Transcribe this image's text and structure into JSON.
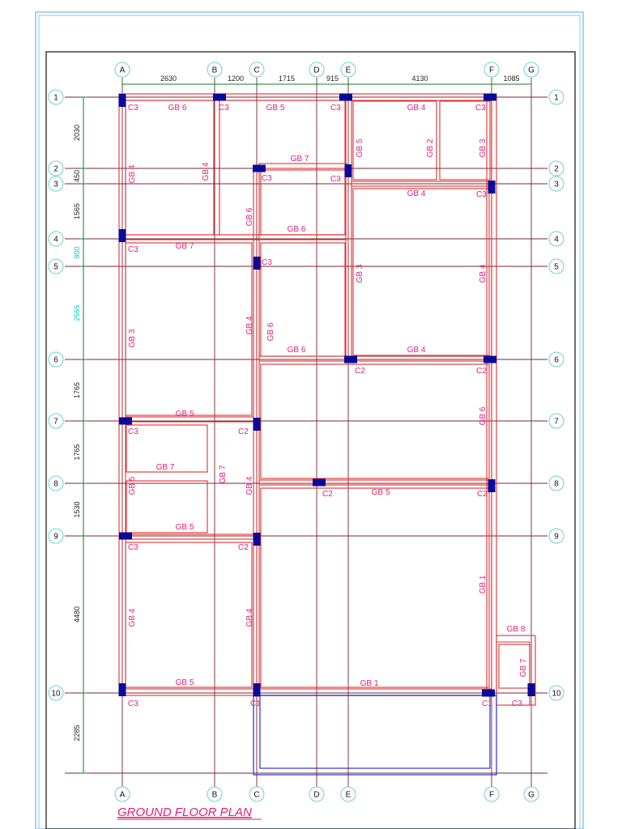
{
  "drawing": {
    "title": "GROUND FLOOR PLAN",
    "colors": {
      "frame": "#8fc3ee",
      "border": "#111111",
      "grid_line": "#7a2535",
      "beam": "#e03030",
      "column": "#0a0a9a",
      "label": "#e0207a",
      "bubble": "#6fcfcf",
      "dim": "#1a7a2a",
      "cyan_dim": "#00cccc",
      "balcony": "#3030c0"
    }
  },
  "grid_x": [
    {
      "label": "A"
    },
    {
      "label": "B"
    },
    {
      "label": "C"
    },
    {
      "label": "D"
    },
    {
      "label": "E"
    },
    {
      "label": "F"
    },
    {
      "label": "G"
    }
  ],
  "grid_y": [
    {
      "label": "1"
    },
    {
      "label": "2"
    },
    {
      "label": "3"
    },
    {
      "label": "4"
    },
    {
      "label": "5"
    },
    {
      "label": "6"
    },
    {
      "label": "7"
    },
    {
      "label": "8"
    },
    {
      "label": "9"
    },
    {
      "label": "10"
    }
  ],
  "dims_top": [
    "2630",
    "1200",
    "1715",
    "915",
    "4130",
    "1085"
  ],
  "dims_left": [
    "2030",
    "450",
    "1565",
    "800",
    "2565",
    "1765",
    "1765",
    "1530",
    "4480",
    "2285"
  ],
  "beam_labels": [
    "GB 6",
    "GB 5",
    "GB 4",
    "GB 7",
    "GB 4",
    "GB 6",
    "GB 6",
    "GB 7",
    "GB 4",
    "GB 4",
    "GB 6",
    "GB 5",
    "GB 2",
    "GB 3",
    "GB 3",
    "GB 4",
    "GB 4",
    "GB 6",
    "GB 4",
    "GB 5",
    "GB 7",
    "GB 7",
    "GB 5",
    "GB 5",
    "GB 3",
    "GB 6",
    "GB 5",
    "GB 4",
    "GB 4",
    "GB 1",
    "GB 8",
    "GB 7",
    "GB 5",
    "GB 1",
    "GB 4"
  ],
  "column_labels": [
    "C3",
    "C3",
    "C3",
    "C3",
    "C3",
    "C3",
    "C3",
    "C3",
    "C3",
    "C2",
    "C2",
    "C3",
    "C2",
    "C2",
    "C2",
    "C3",
    "C2",
    "C3",
    "C1",
    "C1",
    "C3"
  ]
}
